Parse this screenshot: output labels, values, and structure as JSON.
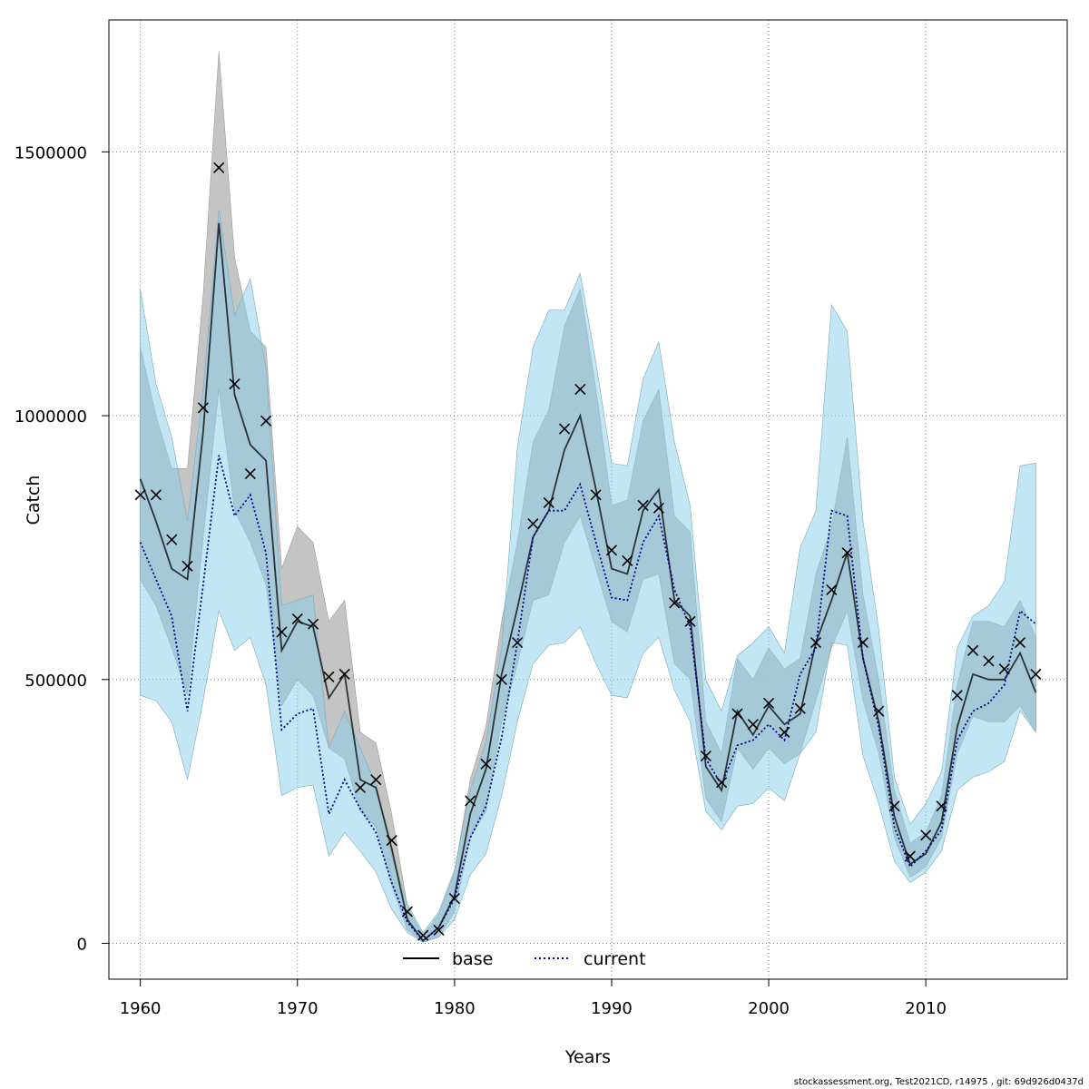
{
  "footer_text": "stockassessment.org, Test2021CD, r14975 , git: 69d926d0437d",
  "colors": {
    "base_band": "#bebebe",
    "current_band": "#87ceeb",
    "base_line": "#000000",
    "current_line": "#00008b",
    "observed": "#000000",
    "grid": "#7f7f7f"
  },
  "chart_data": {
    "type": "line",
    "title": "",
    "xlabel": "Years",
    "ylabel": "Catch",
    "xlim": [
      1958,
      2019
    ],
    "ylim": [
      -68000,
      1750000
    ],
    "x_ticks": [
      1960,
      1970,
      1980,
      1990,
      2000,
      2010
    ],
    "y_ticks": [
      0,
      500000,
      1000000,
      1500000
    ],
    "x_tick_labels": [
      "1960",
      "1970",
      "1980",
      "1990",
      "2000",
      "2010"
    ],
    "y_tick_labels": [
      "0",
      "500000",
      "1000000",
      "1500000"
    ],
    "grid": true,
    "legend_position": "bottom-center",
    "years": [
      1960,
      1961,
      1962,
      1963,
      1964,
      1965,
      1966,
      1967,
      1968,
      1969,
      1970,
      1971,
      1972,
      1973,
      1974,
      1975,
      1976,
      1977,
      1978,
      1979,
      1980,
      1981,
      1982,
      1983,
      1984,
      1985,
      1986,
      1987,
      1988,
      1989,
      1990,
      1991,
      1992,
      1993,
      1994,
      1995,
      1996,
      1997,
      1998,
      1999,
      2000,
      2001,
      2002,
      2003,
      2004,
      2005,
      2006,
      2007,
      2008,
      2009,
      2010,
      2011,
      2012,
      2013,
      2014,
      2015,
      2016,
      2017
    ],
    "series": [
      {
        "name": "base",
        "line_style": "solid",
        "values": [
          880000,
          800000,
          710000,
          690000,
          970000,
          1365000,
          1040000,
          945000,
          915000,
          555000,
          610000,
          600000,
          465000,
          510000,
          310000,
          295000,
          180000,
          45000,
          5000,
          30000,
          90000,
          245000,
          330000,
          510000,
          635000,
          770000,
          820000,
          935000,
          1000000,
          860000,
          710000,
          700000,
          820000,
          860000,
          650000,
          620000,
          335000,
          290000,
          440000,
          395000,
          450000,
          415000,
          435000,
          570000,
          650000,
          740000,
          540000,
          420000,
          240000,
          150000,
          170000,
          230000,
          410000,
          510000,
          500000,
          500000,
          550000,
          475000
        ],
        "lower": [
          690000,
          640000,
          560000,
          470000,
          770000,
          1050000,
          820000,
          760000,
          680000,
          450000,
          500000,
          470000,
          370000,
          350000,
          250000,
          220000,
          110000,
          25000,
          2000,
          12000,
          60000,
          200000,
          250000,
          420000,
          530000,
          650000,
          660000,
          760000,
          810000,
          710000,
          610000,
          590000,
          690000,
          700000,
          530000,
          500000,
          275000,
          230000,
          370000,
          330000,
          370000,
          340000,
          360000,
          460000,
          560000,
          630000,
          460000,
          360000,
          200000,
          125000,
          145000,
          200000,
          360000,
          430000,
          420000,
          420000,
          450000,
          400000
        ],
        "upper": [
          1130000,
          1000000,
          900000,
          900000,
          1230000,
          1690000,
          1300000,
          1160000,
          1130000,
          710000,
          790000,
          760000,
          610000,
          650000,
          400000,
          380000,
          245000,
          70000,
          15000,
          55000,
          135000,
          310000,
          410000,
          610000,
          760000,
          950000,
          1010000,
          1170000,
          1240000,
          1050000,
          830000,
          840000,
          990000,
          1050000,
          810000,
          780000,
          420000,
          360000,
          540000,
          500000,
          560000,
          520000,
          540000,
          700000,
          790000,
          960000,
          660000,
          500000,
          290000,
          190000,
          210000,
          280000,
          490000,
          610000,
          610000,
          600000,
          650000,
          580000
        ]
      },
      {
        "name": "current",
        "line_style": "dotted",
        "values": [
          760000,
          690000,
          620000,
          440000,
          680000,
          925000,
          810000,
          850000,
          740000,
          405000,
          435000,
          445000,
          245000,
          310000,
          255000,
          210000,
          115000,
          40000,
          5000,
          30000,
          85000,
          200000,
          260000,
          390000,
          570000,
          770000,
          820000,
          820000,
          870000,
          760000,
          655000,
          650000,
          760000,
          810000,
          670000,
          600000,
          350000,
          300000,
          375000,
          385000,
          415000,
          385000,
          510000,
          560000,
          820000,
          810000,
          540000,
          410000,
          220000,
          145000,
          175000,
          215000,
          385000,
          440000,
          455000,
          490000,
          630000,
          605000
        ],
        "lower": [
          470000,
          460000,
          420000,
          310000,
          460000,
          630000,
          555000,
          580000,
          490000,
          280000,
          295000,
          300000,
          165000,
          210000,
          175000,
          135000,
          65000,
          20000,
          2000,
          12000,
          45000,
          130000,
          170000,
          280000,
          420000,
          530000,
          565000,
          570000,
          600000,
          530000,
          470000,
          465000,
          550000,
          580000,
          480000,
          420000,
          250000,
          215000,
          260000,
          265000,
          295000,
          270000,
          360000,
          400000,
          570000,
          565000,
          355000,
          265000,
          155000,
          115000,
          135000,
          175000,
          290000,
          315000,
          325000,
          345000,
          440000,
          400000
        ],
        "upper": [
          1240000,
          1060000,
          960000,
          800000,
          1050000,
          1390000,
          1190000,
          1260000,
          1090000,
          640000,
          650000,
          660000,
          370000,
          440000,
          370000,
          300000,
          165000,
          75000,
          20000,
          60000,
          140000,
          290000,
          380000,
          560000,
          940000,
          1130000,
          1200000,
          1200000,
          1270000,
          1100000,
          910000,
          905000,
          1070000,
          1140000,
          950000,
          830000,
          500000,
          440000,
          545000,
          570000,
          600000,
          550000,
          750000,
          820000,
          1210000,
          1160000,
          800000,
          595000,
          315000,
          225000,
          265000,
          325000,
          560000,
          620000,
          640000,
          685000,
          905000,
          910000
        ]
      }
    ],
    "observed": {
      "marker": "x",
      "values": [
        850000,
        850000,
        765000,
        715000,
        1015000,
        1470000,
        1060000,
        890000,
        990000,
        590000,
        615000,
        605000,
        505000,
        510000,
        295000,
        310000,
        195000,
        60000,
        15000,
        25000,
        85000,
        270000,
        340000,
        500000,
        570000,
        795000,
        835000,
        975000,
        1050000,
        850000,
        745000,
        725000,
        830000,
        825000,
        645000,
        610000,
        355000,
        305000,
        435000,
        415000,
        455000,
        400000,
        445000,
        570000,
        670000,
        740000,
        570000,
        440000,
        260000,
        165000,
        205000,
        260000,
        470000,
        555000,
        535000,
        520000,
        570000,
        510000
      ]
    }
  }
}
